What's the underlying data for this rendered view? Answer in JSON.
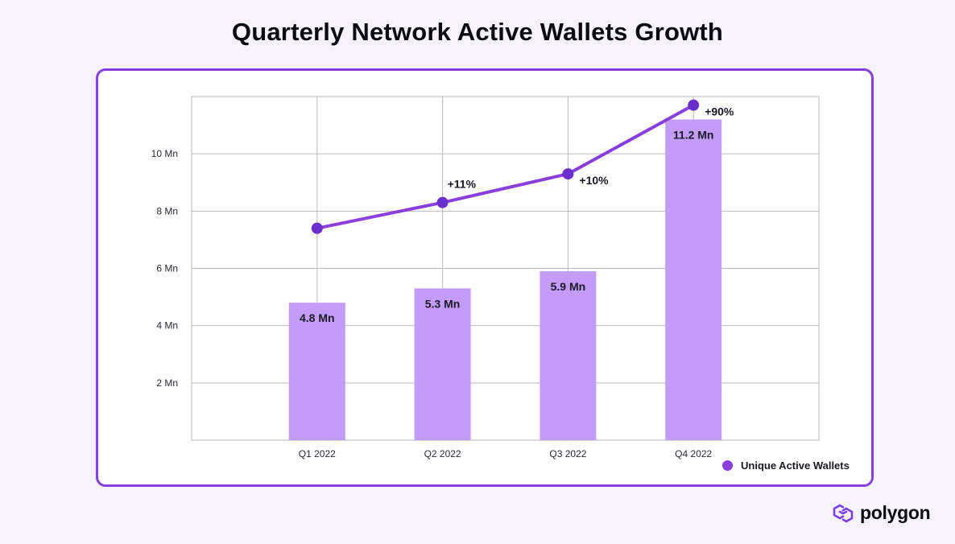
{
  "page_title": "Quarterly Network Active Wallets Growth",
  "brand": {
    "name": "polygon",
    "icon": "polygon-logo-icon",
    "color": "#7b3fe4"
  },
  "colors": {
    "bar": "#c39bf9",
    "line": "#8a3fdc",
    "point": "#6a2fcd",
    "grid": "#b9b9bf",
    "axis_text": "#2a2a33",
    "label_text": "#1a1a26"
  },
  "chart_data": {
    "type": "bar",
    "title": "Quarterly Network Active Wallets Growth",
    "categories": [
      "Q1 2022",
      "Q2 2022",
      "Q3 2022",
      "Q4 2022"
    ],
    "series": [
      {
        "name": "Unique Active Wallets",
        "type": "bar",
        "values": [
          4.8,
          5.3,
          5.9,
          11.2
        ],
        "data_labels": [
          "4.8 Mn",
          "5.3 Mn",
          "5.9 Mn",
          "11.2 Mn"
        ]
      },
      {
        "type": "line",
        "values": [
          7.4,
          8.3,
          9.3,
          11.7
        ],
        "data_labels": [
          "",
          "+11%",
          "+10%",
          "+90%"
        ]
      }
    ],
    "y_ticks": [
      {
        "value": 2,
        "label": "2 Mn"
      },
      {
        "value": 4,
        "label": "4 Mn"
      },
      {
        "value": 6,
        "label": "6 Mn"
      },
      {
        "value": 8,
        "label": "8 Mn"
      },
      {
        "value": 10,
        "label": "10 Mn"
      }
    ],
    "ylim": [
      0,
      12
    ],
    "grid": true,
    "legend": {
      "position": "bottom-right",
      "entries": [
        "Unique Active Wallets"
      ]
    },
    "xlabel": "",
    "ylabel": ""
  }
}
